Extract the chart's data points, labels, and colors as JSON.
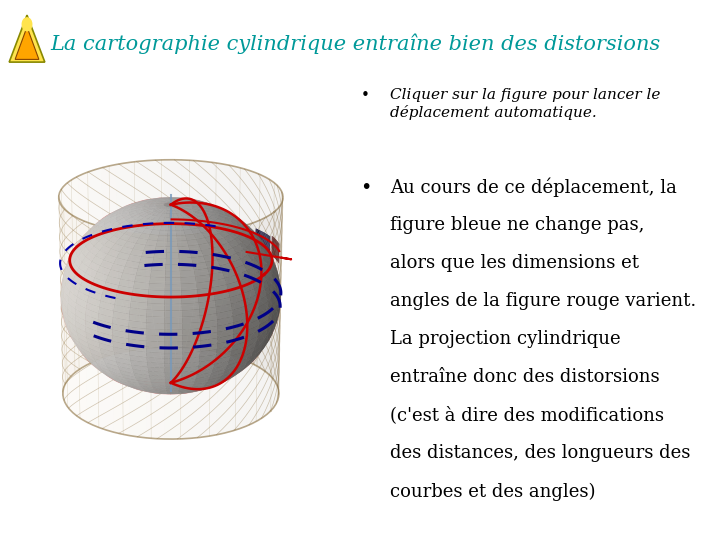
{
  "title": "La cartographie cylindrique entraîne bien des distorsions",
  "title_color": "#009999",
  "title_fontsize": 15,
  "background_color": "#FFFFFF",
  "bullet1_italic": "Cliquer sur la figure pour lancer le\ndéplacement automatique.",
  "bullet2_line1": "Au cours de ce déplacement, la",
  "bullet2_line2": "figure bleue ne change pas,",
  "bullet2_line3": "alors que les dimensions et",
  "bullet2_line4": "angles de la figure rouge varient.",
  "bullet2_line5": "La projection cylindrique",
  "bullet2_line6": "entraîne donc des distorsions",
  "bullet2_line7": "(c'est à dire des modifications",
  "bullet2_line8": "des distances, des longueurs des",
  "bullet2_line9": "courbes et des angles)",
  "text_fontsize": 13,
  "bullet_fontsize": 11
}
